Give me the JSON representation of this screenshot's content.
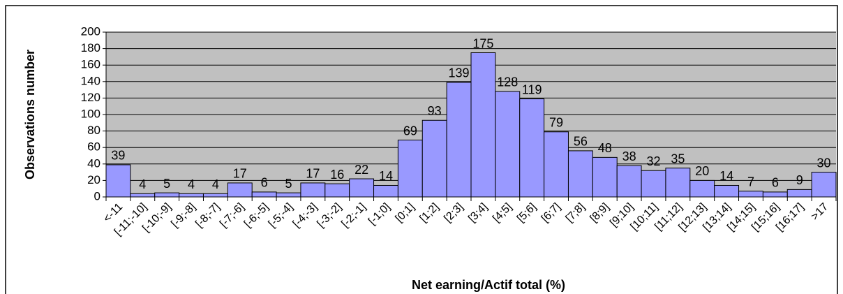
{
  "chart_data": {
    "type": "bar",
    "x_label": "Net earning/Actif total (%)",
    "y_label": "Observations number",
    "categories": [
      "<-11",
      "[-11;-10]",
      "[-10;-9]",
      "[-9;-8]",
      "[-8;-7]",
      "[-7;-6]",
      "[-6;-5]",
      "[-5;-4]",
      "[-4;-3]",
      "[-3;-2]",
      "[-2;-1]",
      "[-1;0]",
      "[0;1]",
      "[1;2]",
      "[2;3]",
      "[3;4]",
      "[4;5]",
      "[5;6]",
      "[6;7]",
      "[7;8]",
      "[8;9]",
      "[9;10]",
      "[10;11]",
      "[11;12]",
      "[12;13]",
      "[13;14]",
      "[14;15]",
      "[15;16]",
      "[16;17]",
      ">17"
    ],
    "values": [
      39,
      4,
      5,
      4,
      4,
      17,
      6,
      5,
      17,
      16,
      22,
      14,
      69,
      93,
      139,
      175,
      128,
      119,
      79,
      56,
      48,
      38,
      32,
      35,
      20,
      14,
      7,
      6,
      9,
      30
    ],
    "color": "#9999ff",
    "ylim": [
      0,
      200
    ],
    "yticks": [
      0,
      20,
      40,
      60,
      80,
      100,
      120,
      140,
      160,
      180,
      200
    ],
    "grid": true
  }
}
